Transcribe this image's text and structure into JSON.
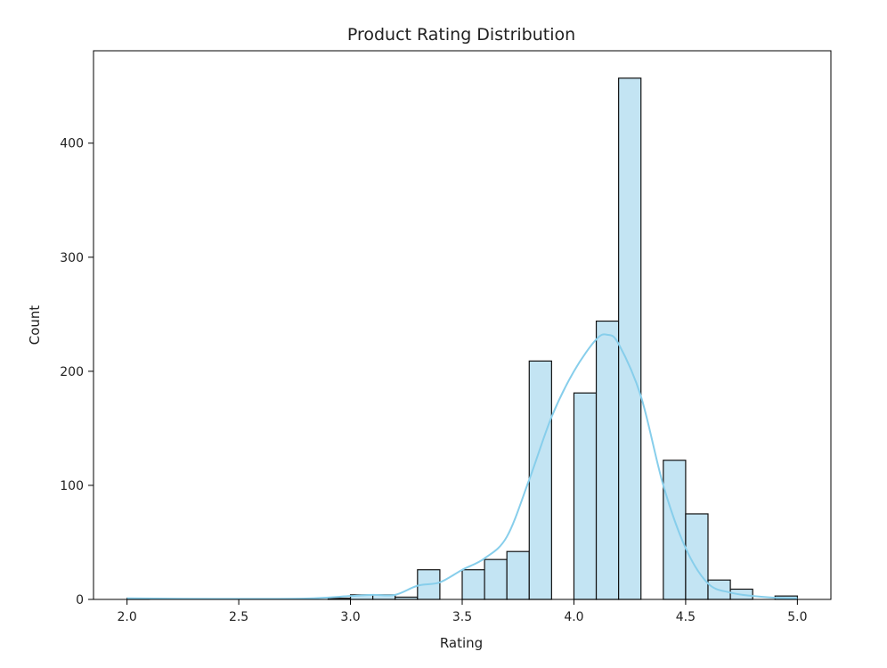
{
  "chart_data": {
    "type": "bar",
    "title": "Product Rating Distribution",
    "xlabel": "Rating",
    "ylabel": "Count",
    "xlim": [
      1.85,
      5.15
    ],
    "ylim": [
      0,
      481
    ],
    "x_ticks": [
      2.0,
      2.5,
      3.0,
      3.5,
      4.0,
      4.5,
      5.0
    ],
    "x_tick_labels": [
      "2.0",
      "2.5",
      "3.0",
      "3.5",
      "4.0",
      "4.5",
      "5.0"
    ],
    "y_ticks": [
      0,
      100,
      200,
      300,
      400
    ],
    "y_tick_labels": [
      "0",
      "100",
      "200",
      "300",
      "400"
    ],
    "bin_width": 0.1,
    "bins": [
      {
        "x0": 2.0,
        "count": 1
      },
      {
        "x0": 2.9,
        "count": 1
      },
      {
        "x0": 3.0,
        "count": 4
      },
      {
        "x0": 3.1,
        "count": 4
      },
      {
        "x0": 3.2,
        "count": 2
      },
      {
        "x0": 3.3,
        "count": 26
      },
      {
        "x0": 3.5,
        "count": 26
      },
      {
        "x0": 3.6,
        "count": 35
      },
      {
        "x0": 3.7,
        "count": 42
      },
      {
        "x0": 3.8,
        "count": 209
      },
      {
        "x0": 4.0,
        "count": 181
      },
      {
        "x0": 4.1,
        "count": 244
      },
      {
        "x0": 4.2,
        "count": 457
      },
      {
        "x0": 4.4,
        "count": 122
      },
      {
        "x0": 4.5,
        "count": 75
      },
      {
        "x0": 4.6,
        "count": 17
      },
      {
        "x0": 4.7,
        "count": 9
      },
      {
        "x0": 4.9,
        "count": 3
      }
    ],
    "kde": {
      "x": [
        2.0,
        2.4,
        2.8,
        3.0,
        3.1,
        3.2,
        3.3,
        3.4,
        3.5,
        3.6,
        3.7,
        3.8,
        3.9,
        4.0,
        4.1,
        4.15,
        4.2,
        4.3,
        4.4,
        4.5,
        4.6,
        4.7,
        4.8,
        4.9,
        5.0
      ],
      "y": [
        1,
        0.5,
        0.8,
        3,
        4,
        4,
        12,
        15,
        26,
        36,
        55,
        105,
        160,
        200,
        228,
        232,
        224,
        178,
        100,
        45,
        14,
        6,
        3,
        1.5,
        1
      ]
    },
    "colors": {
      "bar_fill": "#c3e4f3",
      "bar_edge": "#111111",
      "kde_line": "#87ceeb",
      "axis": "#000000"
    },
    "grid": false,
    "legend": "none"
  }
}
